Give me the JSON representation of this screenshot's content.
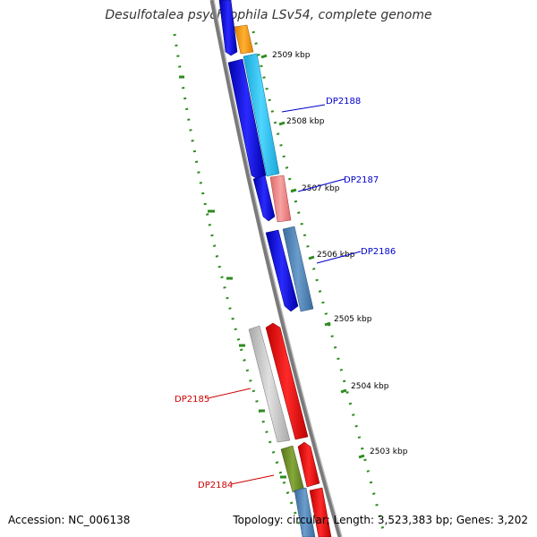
{
  "header": {
    "title": "Desulfotalea psychrophila LSv54, complete genome"
  },
  "footer": {
    "accession": "Accession: NC_006138",
    "summary": "Topology: circular; Length: 3,523,383 bp; Genes: 3,202"
  },
  "scale": {
    "ticks": [
      "2509 kbp",
      "2508 kbp",
      "2507 kbp",
      "2506 kbp",
      "2505 kbp",
      "2504 kbp",
      "2503 kbp"
    ]
  },
  "genes": {
    "labels": [
      {
        "text": "DP2188",
        "color": "#0000cc"
      },
      {
        "text": "DP2187",
        "color": "#0000cc"
      },
      {
        "text": "DP2186",
        "color": "#0000cc"
      },
      {
        "text": "DP2185",
        "color": "#cc0000"
      },
      {
        "text": "DP2184",
        "color": "#cc0000"
      }
    ]
  },
  "colors": {
    "backbone": "#808080",
    "tick": "#2e8b1f",
    "forward_cds": "#0000ff",
    "reverse_cds": "#ff0000",
    "orange": "#ff9900",
    "cyan": "#22c4f0",
    "salmon": "#f08080",
    "steelblue": "#4a7fb5",
    "gray": "#c4c4c4",
    "olive": "#6b8e23"
  }
}
